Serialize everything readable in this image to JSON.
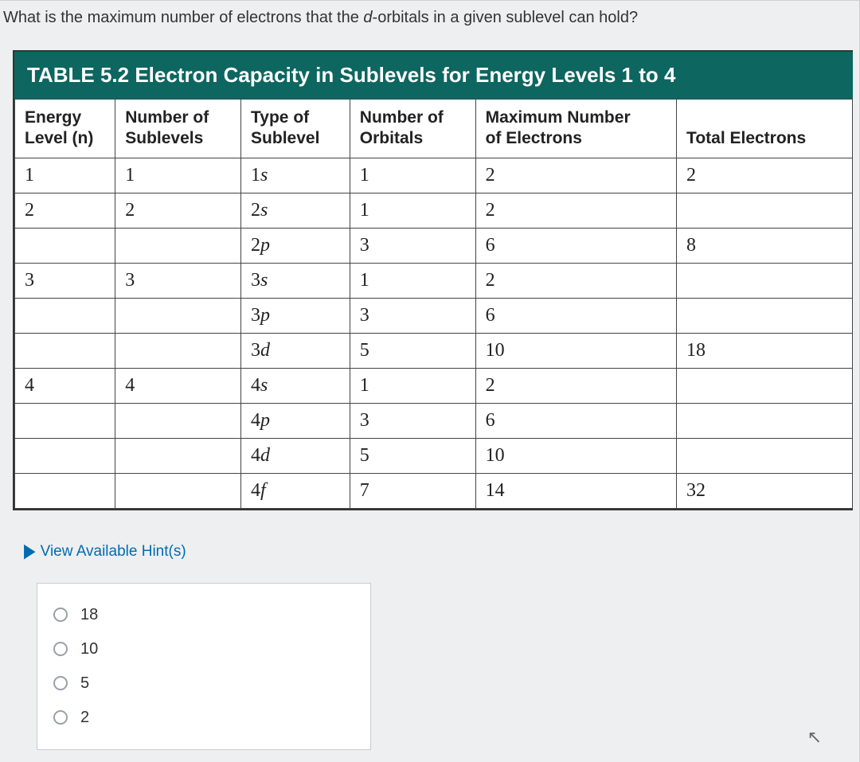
{
  "question": {
    "prefix": "What is the maximum number of electrons that the ",
    "italic": "d",
    "suffix": "-orbitals in a given sublevel can hold?"
  },
  "table": {
    "title": "TABLE 5.2  Electron Capacity in Sublevels for Energy Levels 1 to 4",
    "columns": {
      "energy_l1": "Energy",
      "energy_l2": "Level (n)",
      "sublevels_l1": "Number of",
      "sublevels_l2": "Sublevels",
      "type_l1": "Type of",
      "type_l2": "Sublevel",
      "orbitals_l1": "Number of",
      "orbitals_l2": "Orbitals",
      "max_l1": "Maximum Number",
      "max_l2": "of Electrons",
      "total": "Total Electrons"
    },
    "rows": [
      {
        "energy": "1",
        "sublevels": "1",
        "type_n": "1",
        "type_l": "s",
        "orbitals": "1",
        "max": "2",
        "total": "2"
      },
      {
        "energy": "2",
        "sublevels": "2",
        "type_n": "2",
        "type_l": "s",
        "orbitals": "1",
        "max": "2",
        "total": ""
      },
      {
        "energy": "",
        "sublevels": "",
        "type_n": "2",
        "type_l": "p",
        "orbitals": "3",
        "max": "6",
        "total": "8"
      },
      {
        "energy": "3",
        "sublevels": "3",
        "type_n": "3",
        "type_l": "s",
        "orbitals": "1",
        "max": "2",
        "total": ""
      },
      {
        "energy": "",
        "sublevels": "",
        "type_n": "3",
        "type_l": "p",
        "orbitals": "3",
        "max": "6",
        "total": ""
      },
      {
        "energy": "",
        "sublevels": "",
        "type_n": "3",
        "type_l": "d",
        "orbitals": "5",
        "max": "10",
        "total": "18"
      },
      {
        "energy": "4",
        "sublevels": "4",
        "type_n": "4",
        "type_l": "s",
        "orbitals": "1",
        "max": "2",
        "total": ""
      },
      {
        "energy": "",
        "sublevels": "",
        "type_n": "4",
        "type_l": "p",
        "orbitals": "3",
        "max": "6",
        "total": ""
      },
      {
        "energy": "",
        "sublevels": "",
        "type_n": "4",
        "type_l": "d",
        "orbitals": "5",
        "max": "10",
        "total": ""
      },
      {
        "energy": "",
        "sublevels": "",
        "type_n": "4",
        "type_l": "f",
        "orbitals": "7",
        "max": "14",
        "total": "32"
      }
    ]
  },
  "hints_label": "View Available Hint(s)",
  "options": [
    "18",
    "10",
    "5",
    "2"
  ],
  "colors": {
    "header_bg": "#0d6660",
    "header_text": "#ffffff",
    "link": "#006bb3",
    "border": "#444444",
    "page_bg": "#eeeff0"
  }
}
